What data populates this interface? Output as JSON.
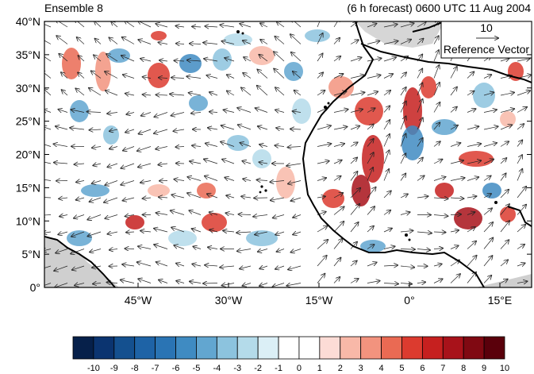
{
  "header": {
    "left_title": "Ensemble 8",
    "right_title": "(6 h forecast) 0600 UTC 11 Aug 2004"
  },
  "axes": {
    "lat_labels": [
      "40°N",
      "35°N",
      "30°N",
      "25°N",
      "20°N",
      "15°N",
      "10°N",
      "5°N",
      "0°"
    ],
    "lon_labels": [
      "45°W",
      "30°W",
      "15°W",
      "0°",
      "15°E"
    ]
  },
  "reference_vector": {
    "magnitude": "10",
    "label": "Reference Vector"
  },
  "colorbar": {
    "labels": [
      "-10",
      "-9",
      "-8",
      "-7",
      "-6",
      "-5",
      "-4",
      "-3",
      "-2",
      "-1",
      "0",
      "1",
      "2",
      "3",
      "4",
      "5",
      "6",
      "7",
      "8",
      "9",
      "10"
    ],
    "colors": [
      "#06204a",
      "#0b3470",
      "#14508f",
      "#1e63a6",
      "#2a74b4",
      "#3f8bc2",
      "#62a6d0",
      "#8cc3de",
      "#b4dbea",
      "#dbeff6",
      "#ffffff",
      "#ffffff",
      "#fcdcd6",
      "#f8b8a8",
      "#f2937e",
      "#ea6a53",
      "#dc3b2f",
      "#c6201f",
      "#a8121a",
      "#800912",
      "#5a000b"
    ]
  },
  "map": {
    "region": "North Africa / tropical Atlantic",
    "field": "wind vectors with shaded anomaly"
  }
}
